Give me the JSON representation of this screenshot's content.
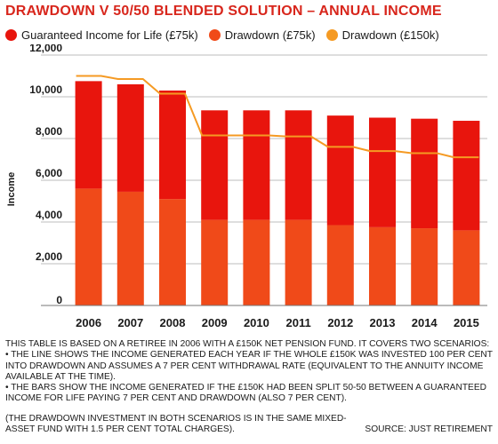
{
  "title": "DRAWDOWN V 50/50 BLENDED SOLUTION – ANNUAL INCOME",
  "legend": [
    {
      "label": "Guaranteed Income for Life (£75k)",
      "color": "#e8150d"
    },
    {
      "label": "Drawdown (£75k)",
      "color": "#f04a19"
    },
    {
      "label": "Drawdown (£150k)",
      "color": "#f59a23"
    }
  ],
  "notes": {
    "intro": "This table is based on a retiree in 2006 with a £150k net pension fund. It covers two scenarios:",
    "bullet1": "• The line shows the income generated each year if the whole £150k was invested 100 per cent into drawdown and assumes a 7 per cent withdrawal rate (equivalent to the annuity income available at the time).",
    "bullet2": "• The bars show the income generated if the £150k had been split 50-50 between a guaranteed income for life paying 7 per cent and drawdown (also 7 per cent).",
    "charges": "(The drawdown investment in both scenarios is in the same mixed-asset fund with 1.5 per cent total charges).",
    "source": "Source: Just Retirement"
  },
  "chart_data": {
    "type": "bar",
    "ylabel": "Income",
    "xlabel": "",
    "ylim": [
      0,
      12000
    ],
    "yticks": [
      0,
      2000,
      4000,
      6000,
      8000,
      10000,
      12000
    ],
    "ytick_labels": [
      "0",
      "2,000",
      "4,000",
      "6,000",
      "8,000",
      "10,000",
      "12,000"
    ],
    "grid": true,
    "categories": [
      "2006",
      "2007",
      "2008",
      "2009",
      "2010",
      "2011",
      "2012",
      "2013",
      "2014",
      "2015"
    ],
    "stacked": true,
    "series": [
      {
        "name": "Drawdown (£75k)",
        "kind": "bar",
        "color": "#f04a19",
        "values": [
          5600,
          5450,
          5100,
          4100,
          4100,
          4100,
          3850,
          3750,
          3700,
          3600
        ]
      },
      {
        "name": "Guaranteed Income for Life (£75k)",
        "kind": "bar",
        "color": "#e8150d",
        "values": [
          5150,
          5150,
          5200,
          5250,
          5250,
          5250,
          5250,
          5250,
          5250,
          5250
        ]
      },
      {
        "name": "Drawdown (£150k)",
        "kind": "line",
        "color": "#f59a23",
        "values": [
          11000,
          10850,
          10150,
          8150,
          8150,
          8100,
          7600,
          7400,
          7300,
          7100
        ]
      }
    ]
  }
}
